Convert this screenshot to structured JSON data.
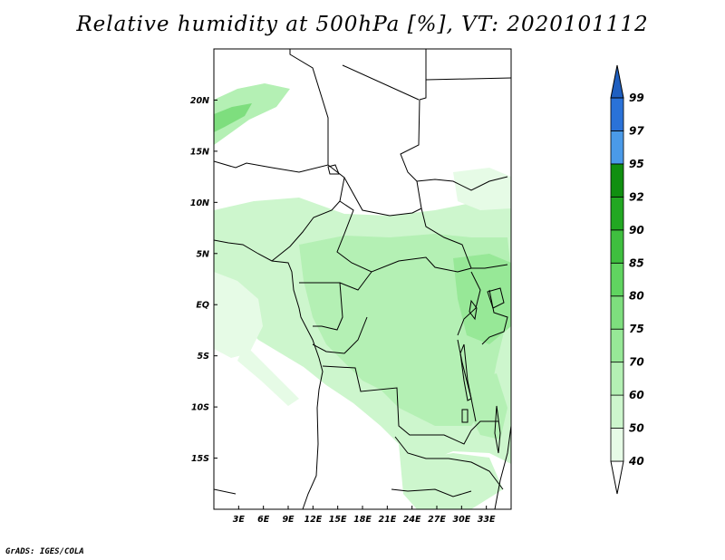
{
  "title": "Relative humidity at 500hPa [%], VT: 2020101112",
  "credit": "GrADS: IGES/COLA",
  "map": {
    "lon_range": [
      0,
      36
    ],
    "lat_range": [
      -20,
      25
    ],
    "lon_ticks": [
      "3E",
      "6E",
      "9E",
      "12E",
      "15E",
      "18E",
      "21E",
      "24E",
      "27E",
      "30E",
      "33E"
    ],
    "lat_ticks": [
      "20N",
      "15N",
      "10N",
      "5N",
      "EQ",
      "5S",
      "10S",
      "15S"
    ]
  },
  "colorbar": {
    "levels": [
      "40",
      "50",
      "60",
      "70",
      "75",
      "80",
      "85",
      "90",
      "92",
      "95",
      "97",
      "99"
    ],
    "colors": [
      "#ffffff",
      "#e6fbe6",
      "#cdf6cd",
      "#b4f0b4",
      "#97e897",
      "#7ede7e",
      "#60d460",
      "#3fbf3f",
      "#22a822",
      "#108f10",
      "#4a9ae8",
      "#2a72d8",
      "#1f5fc0"
    ]
  }
}
